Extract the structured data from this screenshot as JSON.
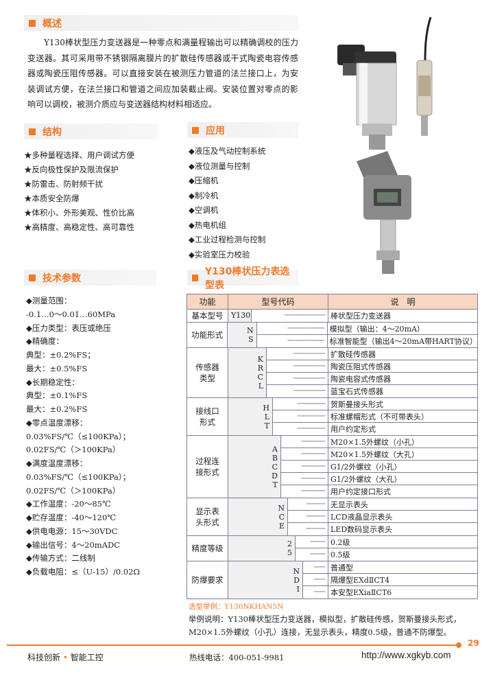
{
  "overview": {
    "title": "概述",
    "text": "Y130棒状型压力变送器是一种零点和满量程输出可以精确调校的压力变送器。其可采用带不锈钢隔离膜片的扩散硅传感器或干式陶瓷电容传感器或陶瓷压阻传感器。可以直接安装在被测压力管道的法兰接口上，为安装调试方便，在法兰接口和管道之间应加装截止阀。安装位置对零点的影响可以调校，被测介质应与变送器结构材料相适应。"
  },
  "structure": {
    "title": "结构",
    "items": [
      "★多种量程选择、用户调试方便",
      "★反向极性保护及限流保护",
      "★防雷击、防射频干扰",
      "★本质安全防爆",
      "★体积小、外形美观、性价比高",
      "★高精度、高稳定性、高可靠性"
    ]
  },
  "application": {
    "title": "应用",
    "items": [
      "◆液压及气动控制系统",
      "◆液位测量与控制",
      "◆压缩机",
      "◆制冷机",
      "◆空调机",
      "◆热电机组",
      "◆工业过程检测与控制",
      "◆实验室压力校验"
    ]
  },
  "specs": {
    "title": "技术参数",
    "items": [
      "◆测量范围：",
      "  -0.1…0～0.01…60MPa",
      "◆压力类型：表压或绝压",
      "◆精确度：",
      "  典型：±0.2%FS；",
      "  最大：±0.5%FS",
      "◆长期稳定性：",
      "  典型：±0.1%FS",
      "  最大：±0.2%FS",
      "◆零点温度漂移：",
      "  0.03%FS/℃（≤100KPa）；",
      "  0.02FS/℃（＞100KPa）",
      "◆满度温度漂移：",
      "  0.03%FS/℃（≤100KPa）；",
      "  0.02FS/℃（＞100KPa）",
      "◆工作温度：-20～85℃",
      "◆贮存温度：-40～120℃",
      "◆供电电源：15～30VDC",
      "◆输出信号：4～20mADC",
      "◆传输方式：二线制",
      "◆负载电阻：≤（U-15）/0.02Ω"
    ]
  },
  "selection": {
    "title": "Y130棒状压力表选型表",
    "headers": [
      "功能",
      "型号代码",
      "说　明"
    ],
    "groups": [
      {
        "function": "基本型号",
        "rows": [
          {
            "code": "Y130",
            "desc": "棒状型压力变送器"
          }
        ]
      },
      {
        "function": "功能形式",
        "rows": [
          {
            "code": "N",
            "desc": "模拟型（输出：4～20mA）"
          },
          {
            "code": "S",
            "desc": "标准智能型（输出4～20mA带HART协议）"
          }
        ]
      },
      {
        "function": "传感器类型",
        "rows": [
          {
            "code": "K",
            "desc": "扩散硅传感器"
          },
          {
            "code": "R",
            "desc": "陶瓷压阻式传感器"
          },
          {
            "code": "C",
            "desc": "陶瓷电容式传感器"
          },
          {
            "code": "L",
            "desc": "蓝宝石式传感器"
          }
        ]
      },
      {
        "function": "接线口形式",
        "rows": [
          {
            "code": "H",
            "desc": "贺斯曼接头形式"
          },
          {
            "code": "L",
            "desc": "标准螺帽形式（不可带表头）"
          },
          {
            "code": "T",
            "desc": "用户约定形式"
          }
        ]
      },
      {
        "function": "过程连接形式",
        "rows": [
          {
            "code": "A",
            "desc": "M20×1.5外螺纹（小孔）"
          },
          {
            "code": "B",
            "desc": "M20×1.5外螺纹（大孔）"
          },
          {
            "code": "C",
            "desc": "G1/2外螺纹（小孔）"
          },
          {
            "code": "D",
            "desc": "G1/2外螺纹（大孔）"
          },
          {
            "code": "T",
            "desc": "用户约定接口形式"
          }
        ]
      },
      {
        "function": "显示表头形式",
        "rows": [
          {
            "code": "N",
            "desc": "无显示表头"
          },
          {
            "code": "C",
            "desc": "LCD液晶显示表头"
          },
          {
            "code": "E",
            "desc": "LED数码显示表头"
          }
        ]
      },
      {
        "function": "精度等级",
        "rows": [
          {
            "code": "2",
            "desc": "0.2级"
          },
          {
            "code": "5",
            "desc": "0.5级"
          }
        ]
      },
      {
        "function": "防爆要求",
        "rows": [
          {
            "code": "N",
            "desc": "普通型"
          },
          {
            "code": "D",
            "desc": "隔爆型EXdⅡCT4"
          },
          {
            "code": "I",
            "desc": "本安型EXiaⅡCT6"
          }
        ]
      }
    ],
    "example_label": "选型举例：Y130NKHAN5N",
    "example_text_1": "举例说明：Y130棒状型压力变送器，模拟型，扩散硅传感，贺斯曼接头形式，",
    "example_text_2": "M20×1.5外螺纹（小孔）连接，无显示表头，精度0.5级，普通不防爆型。"
  },
  "footer": {
    "page": "29",
    "slogan_left": "科技创新",
    "slogan_sep": "•",
    "slogan_right": "智能工控",
    "hotline": "热线电话：400-051-9981",
    "url": "http://www.xgkyb.com"
  },
  "colors": {
    "accent": "#f07a2a",
    "table_header": "#f9d6c1"
  }
}
